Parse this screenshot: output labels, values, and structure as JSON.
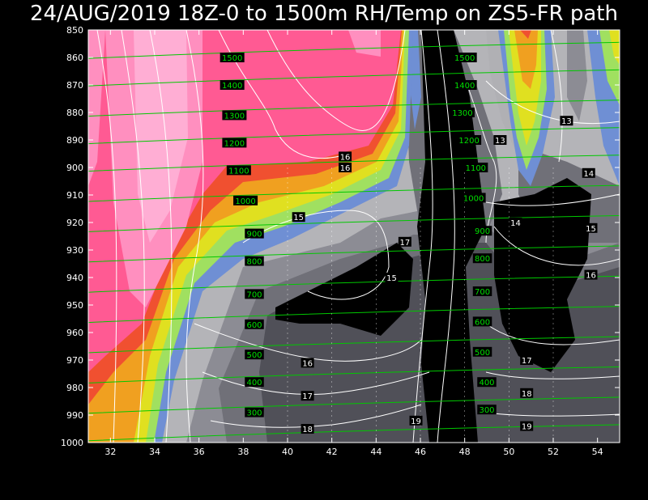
{
  "title": "24/AUG/2019 18Z-0 to 1500m RH/Temp on ZS5-FR path",
  "chart_data": {
    "type": "heatmap",
    "title": "24/AUG/2019 18Z-0 to 1500m RH/Temp on ZS5-FR path",
    "xlabel": "",
    "ylabel": "",
    "xlim": [
      31,
      55
    ],
    "ylim": [
      850,
      1000
    ],
    "y_inverted": true,
    "x_ticks": [
      32,
      34,
      36,
      38,
      40,
      42,
      44,
      46,
      48,
      50,
      52,
      54
    ],
    "y_ticks": [
      850,
      860,
      870,
      880,
      890,
      900,
      910,
      920,
      930,
      940,
      950,
      960,
      970,
      980,
      990,
      1000
    ],
    "filled_field": "relative humidity",
    "fill_colors": [
      "#000000",
      "#505050",
      "#707078",
      "#8c8c94",
      "#b0b0b4",
      "#6f8fd4",
      "#a0e060",
      "#e0e020",
      "#f0a020",
      "#f05030",
      "#ff5090",
      "#ff80b0",
      "#ff99cc"
    ],
    "temperature_labels": [
      {
        "x": 42.6,
        "y": 896,
        "text": "16"
      },
      {
        "x": 42.6,
        "y": 900,
        "text": "16"
      },
      {
        "x": 40.5,
        "y": 918,
        "text": "15"
      },
      {
        "x": 44.7,
        "y": 940,
        "text": "15"
      },
      {
        "x": 45.3,
        "y": 927,
        "text": "17"
      },
      {
        "x": 40.9,
        "y": 971,
        "text": "16"
      },
      {
        "x": 40.9,
        "y": 983,
        "text": "17"
      },
      {
        "x": 40.9,
        "y": 995,
        "text": "18"
      },
      {
        "x": 45.8,
        "y": 992,
        "text": "19"
      },
      {
        "x": 49.6,
        "y": 890,
        "text": "13"
      },
      {
        "x": 52.6,
        "y": 883,
        "text": "13"
      },
      {
        "x": 53.6,
        "y": 902,
        "text": "14"
      },
      {
        "x": 50.3,
        "y": 920,
        "text": "14"
      },
      {
        "x": 53.7,
        "y": 922,
        "text": "15"
      },
      {
        "x": 53.7,
        "y": 939,
        "text": "16"
      },
      {
        "x": 50.8,
        "y": 970,
        "text": "17"
      },
      {
        "x": 50.8,
        "y": 982,
        "text": "18"
      },
      {
        "x": 50.8,
        "y": 994,
        "text": "19"
      }
    ],
    "height_labels": [
      {
        "x": 37.5,
        "y": 860,
        "text": "1500"
      },
      {
        "x": 37.5,
        "y": 870,
        "text": "1400"
      },
      {
        "x": 37.6,
        "y": 881,
        "text": "1300"
      },
      {
        "x": 37.6,
        "y": 891,
        "text": "1200"
      },
      {
        "x": 37.8,
        "y": 901,
        "text": "1100"
      },
      {
        "x": 38.1,
        "y": 912,
        "text": "1000"
      },
      {
        "x": 38.5,
        "y": 924,
        "text": "900"
      },
      {
        "x": 38.5,
        "y": 934,
        "text": "800"
      },
      {
        "x": 38.5,
        "y": 946,
        "text": "700"
      },
      {
        "x": 38.5,
        "y": 957,
        "text": "600"
      },
      {
        "x": 38.5,
        "y": 968,
        "text": "500"
      },
      {
        "x": 38.5,
        "y": 978,
        "text": "400"
      },
      {
        "x": 38.5,
        "y": 989,
        "text": "300"
      },
      {
        "x": 48.0,
        "y": 860,
        "text": "1500"
      },
      {
        "x": 48.0,
        "y": 870,
        "text": "1400"
      },
      {
        "x": 47.9,
        "y": 880,
        "text": "1300"
      },
      {
        "x": 48.2,
        "y": 890,
        "text": "1200"
      },
      {
        "x": 48.5,
        "y": 900,
        "text": "1100"
      },
      {
        "x": 48.4,
        "y": 911,
        "text": "1000"
      },
      {
        "x": 48.8,
        "y": 923,
        "text": "900"
      },
      {
        "x": 48.8,
        "y": 933,
        "text": "800"
      },
      {
        "x": 48.8,
        "y": 945,
        "text": "700"
      },
      {
        "x": 48.8,
        "y": 956,
        "text": "600"
      },
      {
        "x": 48.8,
        "y": 967,
        "text": "500"
      },
      {
        "x": 49.0,
        "y": 978,
        "text": "400"
      },
      {
        "x": 49.0,
        "y": 988,
        "text": "300"
      }
    ]
  }
}
